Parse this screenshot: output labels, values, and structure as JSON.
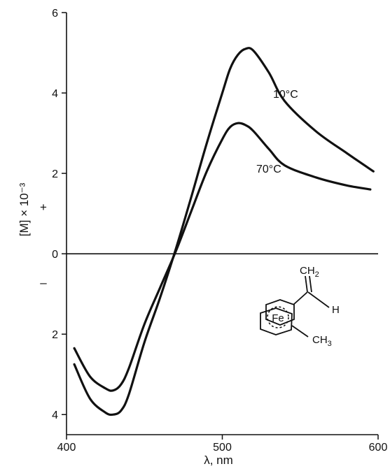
{
  "chart_data": {
    "type": "line",
    "xlabel": "λ, nm",
    "ylabel": "[M] × 10⁻³",
    "xlim": [
      400,
      600
    ],
    "ylim": [
      -4.5,
      6
    ],
    "x_ticks": [
      {
        "value": 400,
        "label": "400"
      },
      {
        "value": 500,
        "label": "500"
      },
      {
        "value": 600,
        "label": "600"
      }
    ],
    "y_ticks": [
      {
        "value": 6,
        "label": "6"
      },
      {
        "value": 4,
        "label": "4"
      },
      {
        "value": 2,
        "label": "2"
      },
      {
        "value": 0,
        "label": "0"
      },
      {
        "value": -2,
        "label": "2"
      },
      {
        "value": -4,
        "label": "4"
      }
    ],
    "sign_labels": {
      "positive": "+",
      "negative": "–"
    },
    "zero_line": true,
    "grid": false,
    "series": [
      {
        "name": "10°C",
        "x": [
          405,
          415,
          425,
          430,
          435,
          440,
          450,
          460,
          470,
          480,
          490,
          500,
          505,
          510,
          515,
          520,
          530,
          540,
          560,
          580,
          597
        ],
        "y": [
          -2.75,
          -3.6,
          -3.95,
          -4.0,
          -3.9,
          -3.5,
          -2.2,
          -1.1,
          0.1,
          1.4,
          2.75,
          4.0,
          4.6,
          4.95,
          5.1,
          5.05,
          4.5,
          3.8,
          3.05,
          2.5,
          2.05
        ]
      },
      {
        "name": "70°C",
        "x": [
          405,
          415,
          425,
          430,
          435,
          440,
          450,
          460,
          470,
          480,
          490,
          500,
          505,
          510,
          515,
          520,
          530,
          540,
          560,
          580,
          595
        ],
        "y": [
          -2.35,
          -3.05,
          -3.35,
          -3.4,
          -3.25,
          -2.85,
          -1.75,
          -0.85,
          0.05,
          1.05,
          2.05,
          2.85,
          3.15,
          3.25,
          3.2,
          3.05,
          2.6,
          2.2,
          1.9,
          1.7,
          1.6
        ]
      }
    ]
  },
  "structure": {
    "metal_label": "Fe",
    "top_group": "CH",
    "top_group_sub": "2",
    "side_group": "H",
    "bottom_group": "CH",
    "bottom_group_sub": "3"
  }
}
